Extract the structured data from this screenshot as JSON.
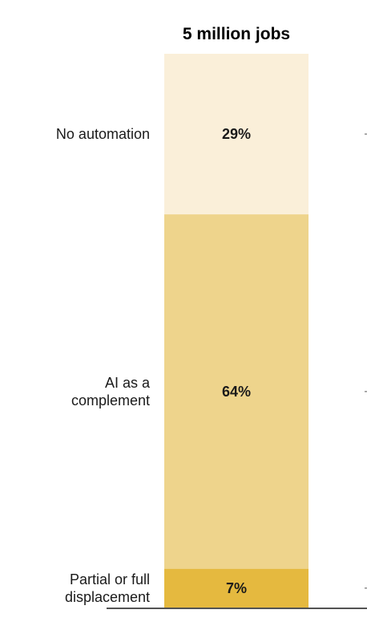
{
  "chart_data": {
    "type": "bar",
    "stacked": true,
    "title": "5 million jobs",
    "xlabel": "",
    "ylabel": "",
    "ylim": [
      0,
      100
    ],
    "grid": false,
    "categories": [
      "No automation",
      "AI as a complement",
      "Partial or full displacement"
    ],
    "category_lines": [
      [
        "No automation"
      ],
      [
        "AI as a",
        "complement"
      ],
      [
        "Partial or full",
        "displacement"
      ]
    ],
    "values": [
      29,
      64,
      7
    ],
    "value_labels": [
      "29%",
      "64%",
      "7%"
    ],
    "colors": [
      "#faefd9",
      "#eed48c",
      "#e5b93f"
    ]
  }
}
